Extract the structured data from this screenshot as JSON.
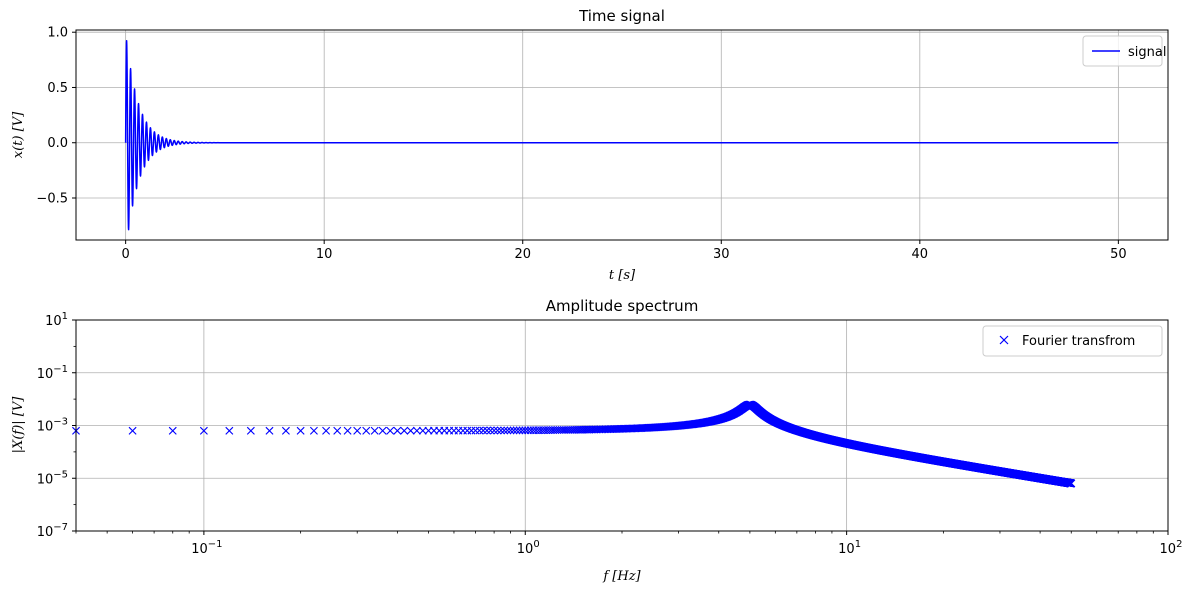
{
  "chart_data": [
    {
      "type": "line",
      "title": "Time signal",
      "xlabel": "t [s]",
      "ylabel": "x(t) [V]",
      "xlim": [
        -2.5,
        52.5
      ],
      "ylim": [
        -0.88,
        1.02
      ],
      "xticks": [
        0,
        10,
        20,
        30,
        40,
        50
      ],
      "yticks": [
        -0.5,
        0.0,
        0.5,
        1.0
      ],
      "xtick_labels": [
        "0",
        "10",
        "20",
        "30",
        "40",
        "50"
      ],
      "ytick_labels": [
        "−0.5",
        "0.0",
        "0.5",
        "1.0"
      ],
      "grid": true,
      "legend_position": "top-right",
      "series": [
        {
          "name": "signal",
          "color": "#0000ff",
          "model": "damped sine",
          "amplitude": 1.0,
          "frequency_hz": 5,
          "decay_rate": 1.6,
          "t_start": 0,
          "t_end": 50
        }
      ]
    },
    {
      "type": "scatter",
      "title": "Amplitude spectrum",
      "xlabel": "f [Hz]",
      "ylabel": "|X(f)| [V]",
      "xscale": "log",
      "yscale": "log",
      "xlim": [
        0.04,
        100
      ],
      "ylim": [
        1e-07,
        10
      ],
      "xticks": [
        0.1,
        1,
        10,
        100
      ],
      "yticks": [
        1e-07,
        1e-05,
        0.001,
        0.1,
        10
      ],
      "xtick_labels": [
        [
          "10",
          "−1"
        ],
        [
          "10",
          "0"
        ],
        [
          "10",
          "1"
        ],
        [
          "10",
          "2"
        ]
      ],
      "ytick_labels": [
        [
          "10",
          "−7"
        ],
        [
          "10",
          "−5"
        ],
        [
          "10",
          "−3"
        ],
        [
          "10",
          "−1"
        ],
        [
          "10",
          "1"
        ]
      ],
      "grid": true,
      "legend_position": "top-right",
      "series": [
        {
          "name": "Fourier transfrom",
          "color": "#0000ff",
          "marker": "x",
          "f_step_hz": 0.02,
          "f_start_hz": 0.04,
          "f_end_hz": 50,
          "dc_value": 0.00063,
          "peak_frequency_hz": 5,
          "peak_value": 0.0062,
          "end_value": 1.55e-05
        }
      ]
    }
  ]
}
